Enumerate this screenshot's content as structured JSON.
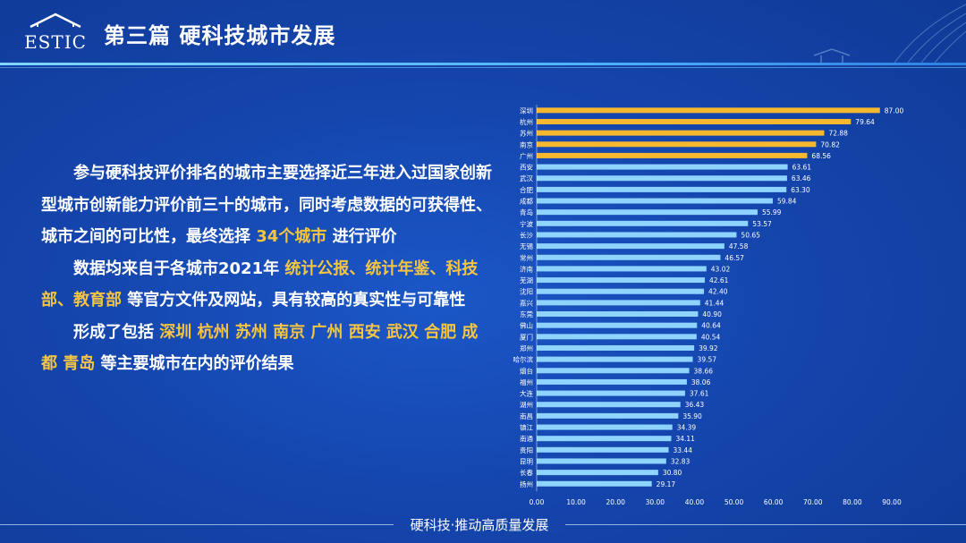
{
  "header": {
    "title": "第三篇  硬科技城市发展",
    "logo_text": "ESTIC"
  },
  "body_text": {
    "p1": [
      {
        "text": "参与硬科技评价排名的城市主要选择近三年进入过国家创新型城市创新能力评价前三十的城市，同时考虑数据的可获得性、城市之间的可比性，最终选择 ",
        "hl": false
      },
      {
        "text": "34个城市",
        "hl": true
      },
      {
        "text": " 进行评价",
        "hl": false
      }
    ],
    "p2": [
      {
        "text": "数据均来自于各城市2021年 ",
        "hl": false
      },
      {
        "text": "统计公报、统计年鉴、科技部、教育部",
        "hl": true
      },
      {
        "text": " 等官方文件及网站，具有较高的真实性与可靠性",
        "hl": false
      }
    ],
    "p3": [
      {
        "text": "形成了包括 ",
        "hl": false
      },
      {
        "text": "深圳 杭州 苏州 南京 广州  西安 武汉 合肥 成都 青岛",
        "hl": true
      },
      {
        "text": " 等主要城市在内的评价结果",
        "hl": false
      }
    ]
  },
  "footer": {
    "text": "硬科技·推动高质量发展"
  },
  "colors": {
    "highlight_bar": "#f5b82e",
    "normal_bar": "#8fd3ff",
    "highlight_text": "#f5c542",
    "background": "#1546ae"
  },
  "chart_data": {
    "type": "bar",
    "orientation": "horizontal",
    "categories": [
      "深圳",
      "杭州",
      "苏州",
      "南京",
      "广州",
      "西安",
      "武汉",
      "合肥",
      "成都",
      "青岛",
      "宁波",
      "长沙",
      "无锡",
      "常州",
      "济南",
      "芜湖",
      "沈阳",
      "嘉兴",
      "东莞",
      "佛山",
      "厦门",
      "郑州",
      "哈尔滨",
      "烟台",
      "福州",
      "大连",
      "湖州",
      "南昌",
      "镇江",
      "南通",
      "贵阳",
      "昆明",
      "长春",
      "扬州"
    ],
    "values": [
      87.0,
      79.64,
      72.88,
      70.82,
      68.56,
      63.61,
      63.46,
      63.3,
      59.84,
      55.99,
      53.57,
      50.65,
      47.58,
      46.57,
      43.02,
      42.61,
      42.4,
      41.44,
      40.9,
      40.64,
      40.54,
      39.92,
      39.57,
      38.66,
      38.06,
      37.61,
      36.43,
      35.9,
      34.39,
      34.11,
      33.44,
      32.83,
      30.8,
      29.17
    ],
    "value_labels": [
      "87.00",
      "79.64",
      "72.88",
      "70.82",
      "68.56",
      "63.61",
      "63.46",
      "63.30",
      "59.84",
      "55.99",
      "53.57",
      "50.65",
      "47.58",
      "46.57",
      "43.02",
      "42.61",
      "42.40",
      "41.44",
      "40.90",
      "40.64",
      "40.54",
      "39.92",
      "39.57",
      "38.66",
      "38.06",
      "37.61",
      "36.43",
      "35.90",
      "34.39",
      "34.11",
      "33.44",
      "32.83",
      "30.80",
      "29.17"
    ],
    "highlighted_count": 5,
    "xlim": [
      0,
      90
    ],
    "x_ticks": [
      "0.00",
      "10.00",
      "20.00",
      "30.00",
      "40.00",
      "50.00",
      "60.00",
      "70.00",
      "80.00",
      "90.00"
    ],
    "grid": false,
    "legend": "none",
    "title": "",
    "xlabel": "",
    "ylabel": ""
  }
}
